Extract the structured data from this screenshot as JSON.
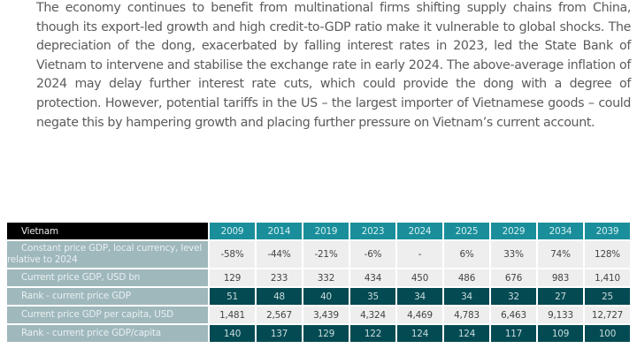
{
  "paragraph": "The economy continues to benefit from multinational firms shifting supply chains from China, though its export-led growth and high credit-to-GDP ratio make it vulnerable to global shocks. The depreciation of the dong, exacerbated by falling interest rates in 2023, led the State Bank of Vietnam to intervene and stabilise the exchange rate in early 2024. The above-average inflation of 2024 may delay further interest rate cuts, which could provide the dong with a degree of protection. However, potential tariffs in the US – the largest importer of Vietnamese goods – could negate this by hampering growth and placing further pressure on Vietnam’s current account.",
  "table": {
    "title": "Vietnam",
    "years": [
      "2009",
      "2014",
      "2019",
      "2023",
      "2024",
      "2025",
      "2029",
      "2034",
      "2039"
    ],
    "rows": [
      {
        "label": "Constant price GDP, local currency, level relative to 2024",
        "style": "light",
        "values": [
          "-58%",
          "-44%",
          "-21%",
          "-6%",
          "-",
          "6%",
          "33%",
          "74%",
          "128%"
        ]
      },
      {
        "label": "Current price GDP, USD bn",
        "style": "light",
        "values": [
          "129",
          "233",
          "332",
          "434",
          "450",
          "486",
          "676",
          "983",
          "1,410"
        ]
      },
      {
        "label": "Rank - current price GDP",
        "style": "dark",
        "values": [
          "51",
          "48",
          "40",
          "35",
          "34",
          "34",
          "32",
          "27",
          "25"
        ]
      },
      {
        "label": "Current price GDP per capita, USD",
        "style": "light",
        "values": [
          "1,481",
          "2,567",
          "3,439",
          "4,324",
          "4,469",
          "4,783",
          "6,463",
          "9,133",
          "12,727"
        ]
      },
      {
        "label": "Rank - current price GDP/capita",
        "style": "dark",
        "values": [
          "140",
          "137",
          "129",
          "122",
          "124",
          "124",
          "117",
          "109",
          "100"
        ]
      }
    ]
  },
  "colors": {
    "header_label_bg": "#000000",
    "header_year_bg": "#1a8f9b",
    "row_label_bg": "#9fb8bc",
    "light_cell_bg": "#eeeeee",
    "dark_cell_bg": "#044a52",
    "body_text": "#5b5b5b"
  }
}
